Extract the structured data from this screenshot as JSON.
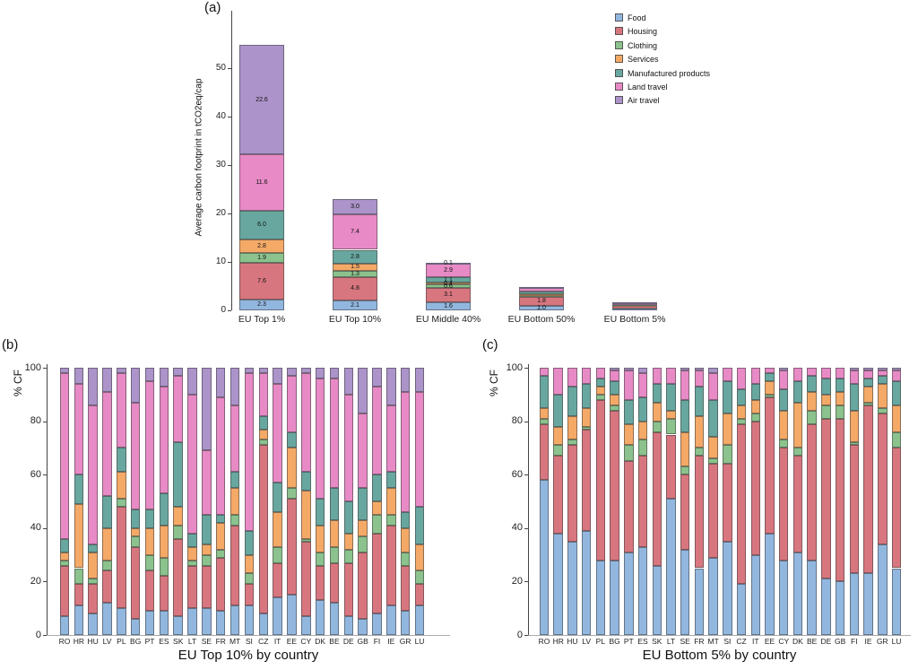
{
  "legend": {
    "items": [
      {
        "label": "Food",
        "color": "#92b7df"
      },
      {
        "label": "Housing",
        "color": "#d8767f"
      },
      {
        "label": "Clothing",
        "color": "#8bc28d"
      },
      {
        "label": "Services",
        "color": "#f4a967"
      },
      {
        "label": "Manufactured products",
        "color": "#68a79f"
      },
      {
        "label": "Land travel",
        "color": "#e78ac6"
      },
      {
        "label": "Air travel",
        "color": "#ac93c9"
      }
    ]
  },
  "chart_data": [
    {
      "type": "bar",
      "stacked": true,
      "panel_label": "(a)",
      "ylabel": "Average carbon footprint in tCO2eq/cap",
      "xlabel": "",
      "ylim": [
        0,
        57
      ],
      "y_ticks": [
        0,
        10,
        20,
        30,
        40,
        50
      ],
      "grid": false,
      "legend_position": "upper-right",
      "categories": [
        "EU Top 1%",
        "EU Top 10%",
        "EU Middle 40%",
        "EU Bottom 50%",
        "EU Bottom 5%"
      ],
      "series": [
        {
          "name": "Food",
          "values": [
            2.3,
            2.1,
            1.6,
            1.0,
            0.45
          ]
        },
        {
          "name": "Housing",
          "values": [
            7.6,
            4.8,
            3.1,
            1.8,
            0.6
          ]
        },
        {
          "name": "Clothing",
          "values": [
            1.9,
            1.3,
            0.6,
            0.3,
            0.05
          ]
        },
        {
          "name": "Services",
          "values": [
            2.8,
            1.5,
            0.4,
            0.3,
            0.1
          ]
        },
        {
          "name": "Manufactured products",
          "values": [
            6.0,
            2.8,
            1.1,
            0.5,
            0.1
          ]
        },
        {
          "name": "Land travel",
          "values": [
            11.6,
            7.4,
            2.9,
            0.8,
            0.2
          ]
        },
        {
          "name": "Air travel",
          "values": [
            22.6,
            3.0,
            0.1,
            0.1,
            0.1
          ]
        }
      ],
      "segment_labels": [
        [
          "2.3",
          "7.6",
          "1.9",
          "2.8",
          "6.0",
          "11.6",
          "22.6"
        ],
        [
          "2.1",
          "4.8",
          "1.3",
          "1.5",
          "2.8",
          "7.4",
          "3.0"
        ],
        [
          "1.6",
          "3.1",
          "0.6",
          "0.4",
          "1.1",
          "2.9",
          "0.1"
        ],
        [
          "1.0",
          "1.8",
          "",
          "",
          "",
          "",
          ""
        ],
        [
          "",
          "",
          "",
          "",
          "",
          "",
          ""
        ]
      ]
    },
    {
      "type": "bar",
      "stacked": true,
      "percent": true,
      "panel_label": "(b)",
      "ylabel": "% CF",
      "xlabel": "EU Top 10% by country",
      "ylim": [
        0,
        100
      ],
      "y_ticks": [
        0,
        20,
        40,
        60,
        80,
        100
      ],
      "grid": false,
      "categories": [
        "RO",
        "HR",
        "HU",
        "LV",
        "PL",
        "BG",
        "PT",
        "ES",
        "SK",
        "LT",
        "SE",
        "FR",
        "MT",
        "SI",
        "CZ",
        "IT",
        "EE",
        "CY",
        "DK",
        "BE",
        "DE",
        "GB",
        "FI",
        "IE",
        "GR",
        "LU"
      ],
      "series": [
        {
          "name": "Food",
          "values": [
            7,
            11,
            8,
            12,
            10,
            6,
            9,
            9,
            7,
            10,
            10,
            9,
            11,
            11,
            8,
            14,
            15,
            7,
            13,
            12,
            7,
            6,
            8,
            11,
            9,
            11
          ]
        },
        {
          "name": "Housing",
          "values": [
            19,
            8,
            11,
            12,
            38,
            27,
            15,
            13,
            29,
            16,
            16,
            20,
            30,
            8,
            63,
            13,
            36,
            28,
            13,
            15,
            20,
            25,
            30,
            30,
            17,
            8
          ]
        },
        {
          "name": "Clothing",
          "values": [
            2,
            6,
            2,
            4,
            3,
            4,
            6,
            7,
            5,
            2,
            4,
            3,
            4,
            4,
            2,
            6,
            4,
            1,
            5,
            6,
            5,
            6,
            7,
            4,
            5,
            5
          ]
        },
        {
          "name": "Services",
          "values": [
            3,
            24,
            10,
            12,
            10,
            3,
            10,
            12,
            7,
            5,
            4,
            10,
            10,
            7,
            4,
            13,
            15,
            18,
            10,
            10,
            6,
            6,
            5,
            10,
            9,
            10
          ]
        },
        {
          "name": "Manufactured products",
          "values": [
            5,
            11,
            3,
            12,
            9,
            7,
            7,
            12,
            24,
            5,
            11,
            3,
            6,
            9,
            5,
            11,
            6,
            7,
            10,
            12,
            12,
            12,
            10,
            6,
            6,
            14
          ]
        },
        {
          "name": "Land travel",
          "values": [
            62,
            34,
            52,
            39,
            28,
            40,
            48,
            40,
            25,
            52,
            24,
            44,
            25,
            59,
            16,
            37,
            21,
            37,
            45,
            41,
            40,
            28,
            33,
            25,
            45,
            43
          ]
        },
        {
          "name": "Air travel",
          "values": [
            2,
            6,
            14,
            9,
            2,
            13,
            5,
            7,
            3,
            10,
            31,
            11,
            14,
            2,
            2,
            6,
            3,
            2,
            4,
            4,
            10,
            17,
            7,
            14,
            9,
            9
          ]
        }
      ]
    },
    {
      "type": "bar",
      "stacked": true,
      "percent": true,
      "panel_label": "(c)",
      "ylabel": "% CF",
      "xlabel": "EU Bottom 5% by country",
      "ylim": [
        0,
        100
      ],
      "y_ticks": [
        0,
        20,
        40,
        60,
        80,
        100
      ],
      "grid": false,
      "categories": [
        "RO",
        "HR",
        "HU",
        "LV",
        "PL",
        "BG",
        "PT",
        "ES",
        "SK",
        "LT",
        "SE",
        "FR",
        "MT",
        "SI",
        "CZ",
        "IT",
        "EE",
        "CY",
        "DK",
        "BE",
        "DE",
        "GB",
        "FI",
        "IE",
        "GR",
        "LU"
      ],
      "series": [
        {
          "name": "Food",
          "values": [
            58,
            38,
            35,
            39,
            28,
            28,
            31,
            33,
            26,
            51,
            32,
            25,
            29,
            35,
            19,
            30,
            38,
            28,
            31,
            28,
            21,
            20,
            23,
            23,
            34,
            25
          ]
        },
        {
          "name": "Housing",
          "values": [
            21,
            29,
            36,
            38,
            60,
            56,
            34,
            34,
            50,
            24,
            28,
            42,
            35,
            29,
            60,
            50,
            51,
            42,
            36,
            51,
            60,
            61,
            48,
            63,
            49,
            45
          ]
        },
        {
          "name": "Clothing",
          "values": [
            2,
            4,
            2,
            1,
            2,
            2,
            6,
            6,
            4,
            6,
            3,
            3,
            2,
            7,
            2,
            3,
            1,
            3,
            3,
            5,
            5,
            5,
            1,
            1,
            2,
            6
          ]
        },
        {
          "name": "Services",
          "values": [
            4,
            7,
            9,
            7,
            3,
            4,
            8,
            7,
            7,
            3,
            13,
            12,
            8,
            12,
            5,
            5,
            5,
            11,
            17,
            7,
            4,
            5,
            12,
            6,
            9,
            10
          ]
        },
        {
          "name": "Manufactured products",
          "values": [
            12,
            12,
            11,
            9,
            3,
            5,
            9,
            9,
            7,
            10,
            12,
            11,
            14,
            12,
            6,
            6,
            3,
            8,
            8,
            6,
            6,
            5,
            10,
            3,
            3,
            9
          ]
        },
        {
          "name": "Land travel",
          "values": [
            3,
            10,
            7,
            6,
            4,
            4,
            11,
            9,
            6,
            6,
            11,
            6,
            10,
            5,
            8,
            6,
            2,
            7,
            5,
            3,
            4,
            4,
            5,
            3,
            2,
            4
          ]
        },
        {
          "name": "Air travel",
          "values": [
            0,
            0,
            0,
            0,
            0,
            1,
            1,
            2,
            0,
            0,
            1,
            1,
            2,
            0,
            0,
            0,
            0,
            1,
            0,
            0,
            0,
            0,
            1,
            1,
            1,
            1
          ]
        }
      ]
    }
  ]
}
